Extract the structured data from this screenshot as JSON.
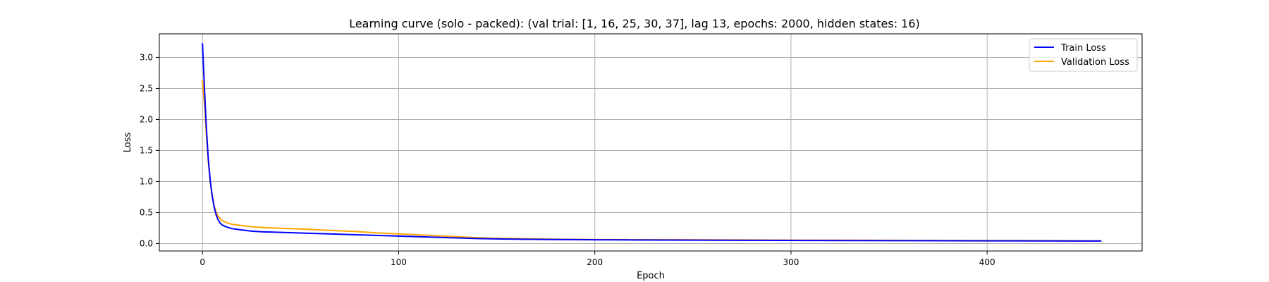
{
  "chart_data": {
    "type": "line",
    "title": "Learning curve (solo - packed): (val trial: [1, 16, 25, 30, 37], lag 13, epochs: 2000, hidden states: 16)",
    "xlabel": "Epoch",
    "ylabel": "Loss",
    "xlim": [
      -22,
      479
    ],
    "ylim": [
      -0.12,
      3.38
    ],
    "xticks": [
      0,
      100,
      200,
      300,
      400
    ],
    "yticks": [
      0.0,
      0.5,
      1.0,
      1.5,
      2.0,
      2.5,
      3.0
    ],
    "xtick_labels": [
      "0",
      "100",
      "200",
      "300",
      "400"
    ],
    "ytick_labels": [
      "0.0",
      "0.5",
      "1.0",
      "1.5",
      "2.0",
      "2.5",
      "3.0"
    ],
    "grid": true,
    "legend_position": "top-right",
    "series": [
      {
        "name": "Train Loss",
        "color": "#0000ff",
        "points": [
          [
            0,
            3.22
          ],
          [
            1,
            2.5
          ],
          [
            2,
            1.85
          ],
          [
            3,
            1.35
          ],
          [
            4,
            1.0
          ],
          [
            5,
            0.76
          ],
          [
            6,
            0.58
          ],
          [
            7,
            0.46
          ],
          [
            8,
            0.38
          ],
          [
            9,
            0.33
          ],
          [
            10,
            0.3
          ],
          [
            12,
            0.27
          ],
          [
            15,
            0.24
          ],
          [
            20,
            0.22
          ],
          [
            25,
            0.2
          ],
          [
            30,
            0.19
          ],
          [
            40,
            0.18
          ],
          [
            50,
            0.17
          ],
          [
            60,
            0.16
          ],
          [
            70,
            0.15
          ],
          [
            80,
            0.14
          ],
          [
            90,
            0.13
          ],
          [
            100,
            0.12
          ],
          [
            110,
            0.11
          ],
          [
            120,
            0.1
          ],
          [
            130,
            0.09
          ],
          [
            140,
            0.08
          ],
          [
            150,
            0.075
          ],
          [
            160,
            0.07
          ],
          [
            170,
            0.068
          ],
          [
            180,
            0.065
          ],
          [
            190,
            0.063
          ],
          [
            200,
            0.06
          ],
          [
            220,
            0.058
          ],
          [
            250,
            0.055
          ],
          [
            280,
            0.052
          ],
          [
            300,
            0.05
          ],
          [
            330,
            0.048
          ],
          [
            360,
            0.046
          ],
          [
            400,
            0.044
          ],
          [
            430,
            0.042
          ],
          [
            458,
            0.04
          ]
        ]
      },
      {
        "name": "Validation Loss",
        "color": "#ffa500",
        "points": [
          [
            0,
            2.62
          ],
          [
            1,
            2.25
          ],
          [
            2,
            1.75
          ],
          [
            3,
            1.3
          ],
          [
            4,
            0.98
          ],
          [
            5,
            0.75
          ],
          [
            6,
            0.6
          ],
          [
            7,
            0.5
          ],
          [
            8,
            0.44
          ],
          [
            9,
            0.4
          ],
          [
            10,
            0.37
          ],
          [
            12,
            0.34
          ],
          [
            15,
            0.31
          ],
          [
            20,
            0.29
          ],
          [
            25,
            0.27
          ],
          [
            30,
            0.26
          ],
          [
            40,
            0.245
          ],
          [
            50,
            0.235
          ],
          [
            60,
            0.22
          ],
          [
            70,
            0.205
          ],
          [
            80,
            0.19
          ],
          [
            90,
            0.17
          ],
          [
            100,
            0.155
          ],
          [
            110,
            0.14
          ],
          [
            120,
            0.125
          ],
          [
            130,
            0.11
          ],
          [
            140,
            0.095
          ],
          [
            150,
            0.085
          ],
          [
            160,
            0.08
          ],
          [
            170,
            0.075
          ],
          [
            180,
            0.07
          ],
          [
            190,
            0.068
          ],
          [
            200,
            0.065
          ],
          [
            220,
            0.062
          ],
          [
            250,
            0.06
          ],
          [
            280,
            0.057
          ],
          [
            300,
            0.055
          ],
          [
            330,
            0.053
          ],
          [
            360,
            0.051
          ],
          [
            400,
            0.049
          ],
          [
            430,
            0.047
          ],
          [
            458,
            0.045
          ]
        ]
      }
    ]
  }
}
